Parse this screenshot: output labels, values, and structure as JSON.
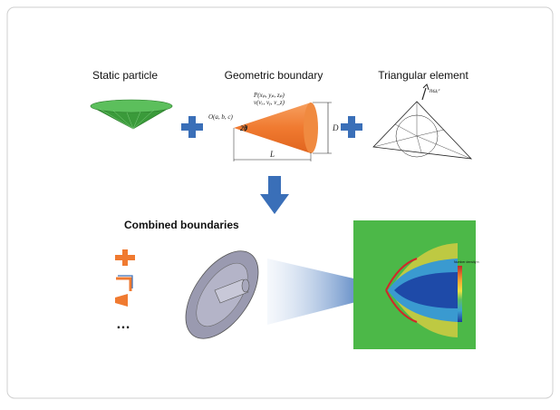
{
  "panels": {
    "static_particle": {
      "label": "Static particle"
    },
    "geometric_boundary": {
      "label": "Geometric boundary",
      "origin": "O(a, b, c)",
      "point": "P(xₚ, yₚ, zₚ)",
      "velocity": "v(vₓ, vᵧ, v_z)",
      "angle": "2θ",
      "diameter": "D",
      "length": "L"
    },
    "triangular_element": {
      "label": "Triangular element",
      "normal": "nωᵢᶜ"
    }
  },
  "combined": {
    "label": "Combined boundaries",
    "more": "…"
  },
  "colorbar": {
    "title": "Number density n"
  }
}
